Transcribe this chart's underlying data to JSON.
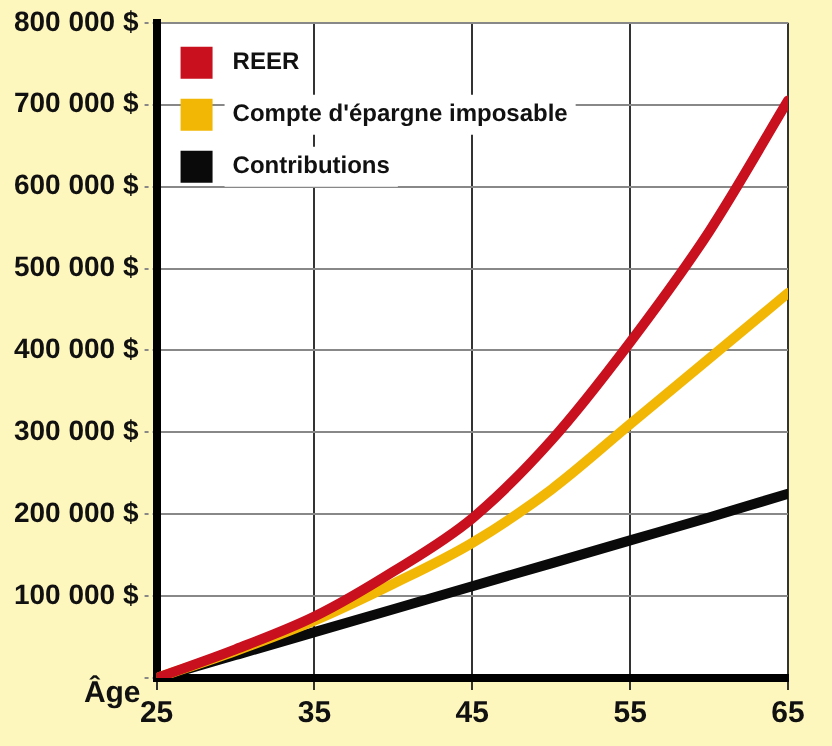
{
  "chart_data": {
    "type": "line",
    "xlabel": "Âge",
    "x": [
      25,
      30,
      35,
      40,
      45,
      50,
      55,
      60,
      65
    ],
    "series": [
      {
        "name": "REER",
        "color": "#c8101e",
        "values": [
          0,
          35000,
          75000,
          130000,
          195000,
          290000,
          410000,
          545000,
          705000
        ]
      },
      {
        "name": "Compte d'épargne imposable",
        "color": "#f2b705",
        "values": [
          0,
          33000,
          70000,
          115000,
          165000,
          230000,
          310000,
          390000,
          470000
        ]
      },
      {
        "name": "Contributions",
        "color": "#0a0a0a",
        "values": [
          0,
          28000,
          56000,
          84000,
          112000,
          140000,
          168000,
          196000,
          225000
        ]
      }
    ],
    "xlim": [
      25,
      65
    ],
    "xticks": [
      25,
      35,
      45,
      55,
      65
    ],
    "ylim": [
      0,
      800000
    ],
    "yticks": [
      {
        "value": 0,
        "label": null
      },
      {
        "value": 100000,
        "label": "100 000 $"
      },
      {
        "value": 200000,
        "label": "200 000 $"
      },
      {
        "value": 300000,
        "label": "300 000 $"
      },
      {
        "value": 400000,
        "label": "400 000 $"
      },
      {
        "value": 500000,
        "label": "500 000 $"
      },
      {
        "value": 600000,
        "label": "600 000 $"
      },
      {
        "value": 700000,
        "label": "700 000 $"
      },
      {
        "value": 800000,
        "label": "800 000 $"
      }
    ],
    "grid": true,
    "legend": "top left",
    "marker": "none",
    "line_style": "solid"
  }
}
